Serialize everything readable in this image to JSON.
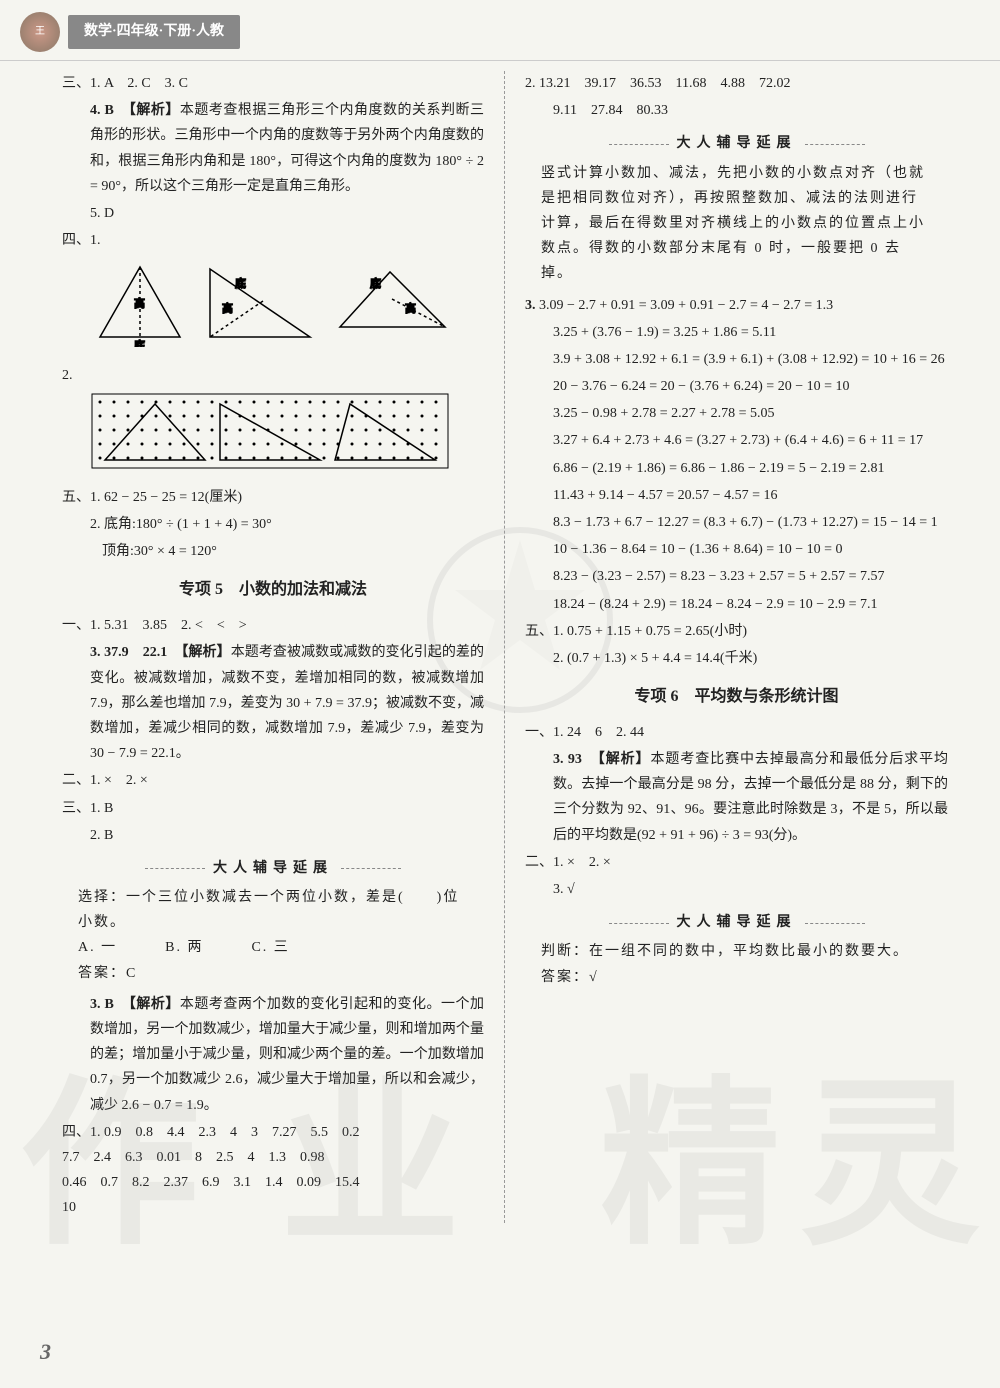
{
  "header": {
    "subject": "数学·四年级·下册·人教"
  },
  "left": {
    "sec3": {
      "line1": "三、1. A　2. C　3. C",
      "q4_head": "4. B　【解析】",
      "q4_body": "本题考查根据三角形三个内角度数的关系判断三角形的形状。三角形中一个内角的度数等于另外两个内角度数的和，根据三角形内角和是 180°，可得这个内角的度数为 180° ÷ 2 = 90°，所以这个三角形一定是直角三角形。",
      "q5": "5. D"
    },
    "sec4_label": "四、1.",
    "sec4_2": "2.",
    "sec5": {
      "line1": "五、1. 62 − 25 − 25 = 12(厘米)",
      "line2a": "2. 底角:180° ÷ (1 + 1 + 4) = 30°",
      "line2b": "顶角:30° × 4 = 120°"
    },
    "topic5_title": "专项 5　小数的加法和减法",
    "t5_s1": {
      "line1": "一、1. 5.31　3.85　2. <　<　>",
      "q3_head": "3. 37.9　22.1　【解析】",
      "q3_body": "本题考查被减数或减数的变化引起的差的变化。被减数增加，减数不变，差增加相同的数，被减数增加 7.9，那么差也增加 7.9，差变为 30 + 7.9 = 37.9；被减数不变，减数增加，差减少相同的数，减数增加 7.9，差减少 7.9，差变为 30 − 7.9 = 22.1。"
    },
    "t5_s2": "二、1. ×　2. ×",
    "t5_s3_1": "三、1. B",
    "t5_s3_2": "2. B",
    "tip1_title": "大人辅导延展",
    "tip1_body1": "选择：一个三位小数减去一个两位小数，差是(　　)位小数。",
    "tip1_body2": "A. 一　　　B. 两　　　C. 三",
    "tip1_body3": "答案：C",
    "t5_s3_3_head": "3. B　【解析】",
    "t5_s3_3_body": "本题考查两个加数的变化引起和的变化。一个加数增加，另一个加数减少，增加量大于减少量，则和增加两个量的差；增加量小于减少量，则和减少两个量的差。一个加数增加 0.7，另一个加数减少 2.6，减少量大于增加量，所以和会减少，减少 2.6 − 0.7 = 1.9。",
    "t5_s4_label": "四、1.",
    "t5_s4_nums": [
      "0.9",
      "0.8",
      "4.4",
      "2.3",
      "4",
      "3",
      "7.27",
      "5.5",
      "0.2",
      "7.7",
      "2.4",
      "6.3",
      "0.01",
      "8",
      "2.5",
      "4",
      "1.3",
      "0.98",
      "0.46",
      "0.7",
      "8.2",
      "2.37",
      "6.9",
      "3.1",
      "1.4",
      "0.09",
      "15.4",
      "10"
    ]
  },
  "right": {
    "r_line1": "2. 13.21　39.17　36.53　11.68　4.88　72.02",
    "r_line1b": "9.11　27.84　80.33",
    "tip2_title": "大人辅导延展",
    "tip2_body": "竖式计算小数加、减法，先把小数的小数点对齐（也就是把相同数位对齐），再按照整数加、减法的法则进行计算，最后在得数里对齐横线上的小数点的位置点上小数点。得数的小数部分末尾有 0 时，一般要把 0 去掉。",
    "eq3_label": "3.",
    "eq3": [
      "3.09 − 2.7 + 0.91 = 3.09 + 0.91 − 2.7 = 4 − 2.7 = 1.3",
      "3.25 + (3.76 − 1.9) = 3.25 + 1.86 = 5.11",
      "3.9 + 3.08 + 12.92 + 6.1 = (3.9 + 6.1) + (3.08 + 12.92) = 10 + 16 = 26",
      "20 − 3.76 − 6.24 = 20 − (3.76 + 6.24) = 20 − 10 = 10",
      "3.25 − 0.98 + 2.78 = 2.27 + 2.78 = 5.05",
      "3.27 + 6.4 + 2.73 + 4.6 = (3.27 + 2.73) + (6.4 + 4.6) = 6 + 11 = 17",
      "6.86 − (2.19 + 1.86) = 6.86 − 1.86 − 2.19 = 5 − 2.19 = 2.81",
      "11.43 + 9.14 − 4.57 = 20.57 − 4.57 = 16",
      "8.3 − 1.73 + 6.7 − 12.27 = (8.3 + 6.7) − (1.73 + 12.27) = 15 − 14 = 1",
      "10 − 1.36 − 8.64 = 10 − (1.36 + 8.64) = 10 − 10 = 0",
      "8.23 − (3.23 − 2.57) = 8.23 − 3.23 + 2.57 = 5 + 2.57 = 7.57",
      "18.24 − (8.24 + 2.9) = 18.24 − 8.24 − 2.9 = 10 − 2.9 = 7.1"
    ],
    "t5_s5_1": "五、1. 0.75 + 1.15 + 0.75 = 2.65(小时)",
    "t5_s5_2": "2. (0.7 + 1.3) × 5 + 4.4 = 14.4(千米)",
    "topic6_title": "专项 6　平均数与条形统计图",
    "t6_s1_1": "一、1. 24　6　2. 44",
    "t6_s1_3_head": "3. 93　【解析】",
    "t6_s1_3_body": "本题考查比赛中去掉最高分和最低分后求平均数。去掉一个最高分是 98 分，去掉一个最低分是 88 分，剩下的三个分数为 92、91、96。要注意此时除数是 3，不是 5，所以最后的平均数是(92 + 91 + 96) ÷ 3 = 93(分)。",
    "t6_s2": "二、1. ×　2. ×",
    "t6_s2_3": "3. √",
    "tip3_title": "大人辅导延展",
    "tip3_body1": "判断：在一组不同的数中，平均数比最小的数要大。",
    "tip3_body2": "答案：√"
  },
  "page_number": "3",
  "watermark": {
    "c1": "作",
    "c2": "业",
    "c3": "精",
    "c4": "灵"
  }
}
